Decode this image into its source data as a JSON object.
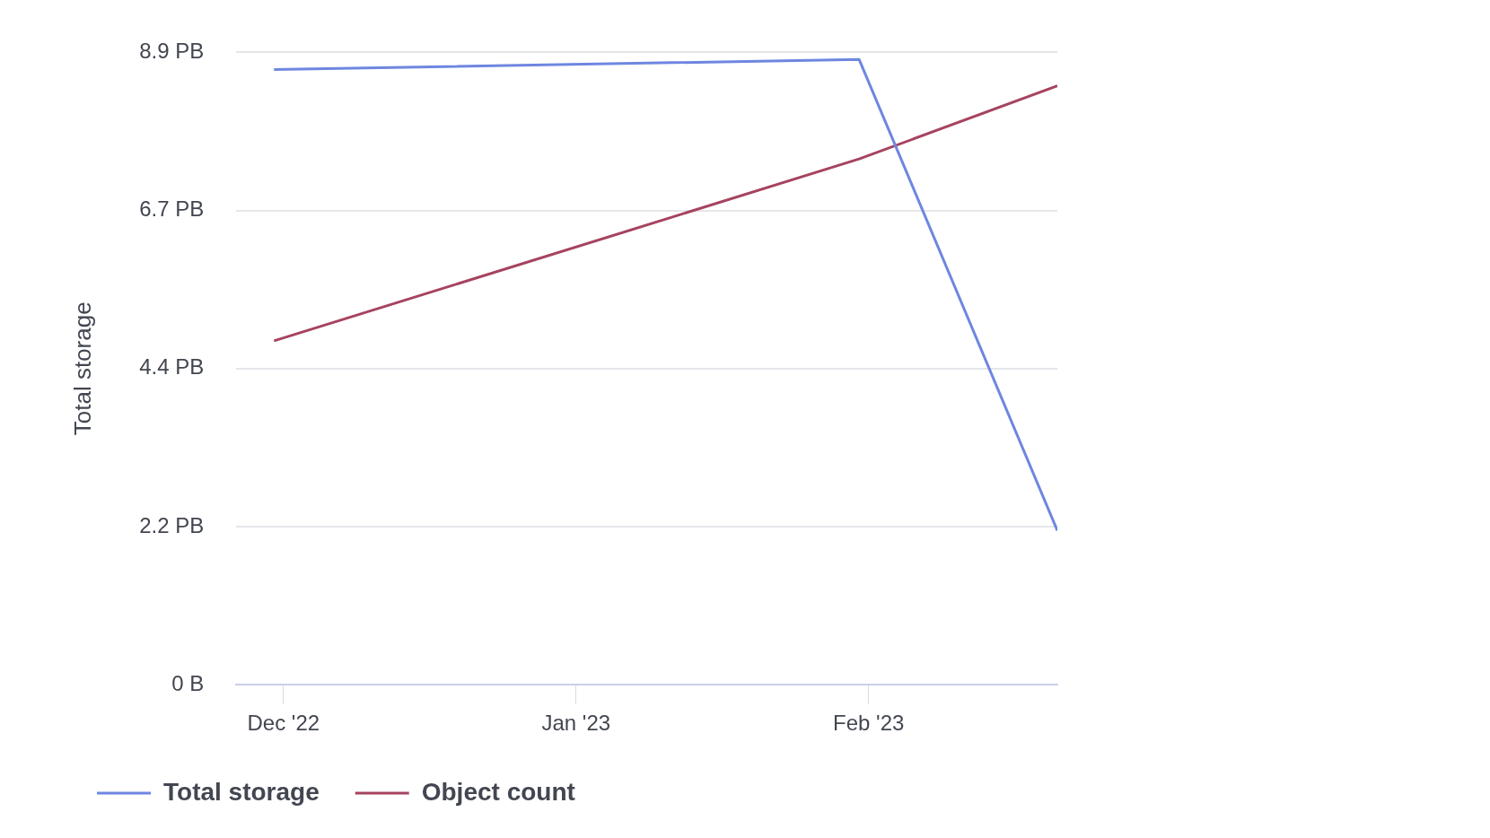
{
  "chart_data": {
    "type": "line",
    "ylabel": "Total storage",
    "x": [
      "2022-11-30",
      "2023-01-31",
      "2023-02-21"
    ],
    "series": [
      {
        "name": "Total storage",
        "color": "#6f86e0",
        "values": [
          8.66,
          8.8,
          2.17
        ]
      },
      {
        "name": "Object count",
        "color": "#a6435f",
        "values": [
          4.84,
          7.4,
          8.43
        ]
      }
    ],
    "xlim": [
      "2022-11-26",
      "2023-02-21"
    ],
    "xticks": [
      {
        "value": "2022-12-01",
        "label": "Dec '22"
      },
      {
        "value": "2023-01-01",
        "label": "Jan '23"
      },
      {
        "value": "2023-02-01",
        "label": "Feb '23"
      }
    ],
    "ylim": [
      0,
      8.9
    ],
    "yticks": [
      {
        "value": 0,
        "label": "0 B"
      },
      {
        "value": 2.225,
        "label": "2.2 PB"
      },
      {
        "value": 4.45,
        "label": "4.4 PB"
      },
      {
        "value": 6.675,
        "label": "6.7 PB"
      },
      {
        "value": 8.9,
        "label": "8.9 PB"
      }
    ],
    "grid": "y",
    "legend": "bottom left",
    "marker": "none",
    "line_style": "solid"
  }
}
